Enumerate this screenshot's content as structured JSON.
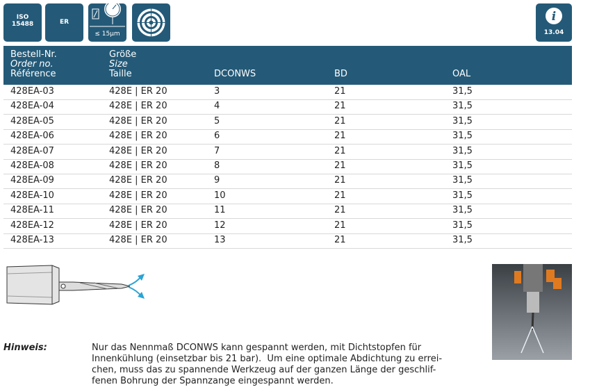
{
  "icons": {
    "iso": [
      "ISO",
      "15488"
    ],
    "er": "ER",
    "runout": "≤ 15µm",
    "info": "13.04"
  },
  "table": {
    "header": [
      [
        "Bestell-Nr.",
        "Order no.",
        "Référence"
      ],
      [
        "Größe",
        "Size",
        "Taille"
      ],
      [
        "DCONWS"
      ],
      [
        "BD"
      ],
      [
        "OAL"
      ]
    ],
    "rows": [
      [
        "428EA-03",
        "428E | ER 20",
        "3",
        "21",
        "31,5"
      ],
      [
        "428EA-04",
        "428E | ER 20",
        "4",
        "21",
        "31,5"
      ],
      [
        "428EA-05",
        "428E | ER 20",
        "5",
        "21",
        "31,5"
      ],
      [
        "428EA-06",
        "428E | ER 20",
        "6",
        "21",
        "31,5"
      ],
      [
        "428EA-07",
        "428E | ER 20",
        "7",
        "21",
        "31,5"
      ],
      [
        "428EA-08",
        "428E | ER 20",
        "8",
        "21",
        "31,5"
      ],
      [
        "428EA-09",
        "428E | ER 20",
        "9",
        "21",
        "31,5"
      ],
      [
        "428EA-10",
        "428E | ER 20",
        "10",
        "21",
        "31,5"
      ],
      [
        "428EA-11",
        "428E | ER 20",
        "11",
        "21",
        "31,5"
      ],
      [
        "428EA-12",
        "428E | ER 20",
        "12",
        "21",
        "31,5"
      ],
      [
        "428EA-13",
        "428E | ER 20",
        "13",
        "21",
        "31,5"
      ]
    ]
  },
  "note": {
    "label": "Hinweis:",
    "lines": [
      "Nur das Nennmaß DCONWS kann gespannt werden, mit Dichtstopfen für",
      "Innenkühlung (einsetzbar bis 21 bar).  Um eine optimale Abdichtung zu errei-",
      "chen, muss das zu spannende Werkzeug auf der ganzen Länge der geschlif-",
      "fenen Bohrung der Spannzange eingespannt werden."
    ]
  }
}
